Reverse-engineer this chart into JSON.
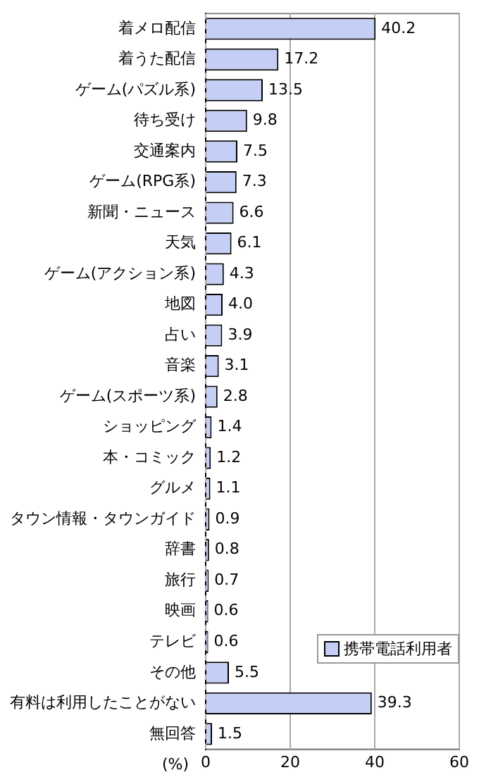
{
  "chart_data": {
    "type": "bar",
    "orientation": "horizontal",
    "xlabel": "(%)",
    "categories": [
      "着メロ配信",
      "着うた配信",
      "ゲーム(パズル系)",
      "待ち受け",
      "交通案内",
      "ゲーム(RPG系)",
      "新聞・ニュース",
      "天気",
      "ゲーム(アクション系)",
      "地図",
      "占い",
      "音楽",
      "ゲーム(スポーツ系)",
      "ショッピング",
      "本・コミック",
      "グルメ",
      "タウン情報・タウンガイド",
      "辞書",
      "旅行",
      "映画",
      "テレビ",
      "その他",
      "有料は利用したことがない",
      "無回答"
    ],
    "series": [
      {
        "name": "携帯電話利用者",
        "color": "#c5cff5",
        "values": [
          40.2,
          17.2,
          13.5,
          9.8,
          7.5,
          7.3,
          6.6,
          6.1,
          4.3,
          4.0,
          3.9,
          3.1,
          2.8,
          1.4,
          1.2,
          1.1,
          0.9,
          0.8,
          0.7,
          0.6,
          0.6,
          5.5,
          39.3,
          1.5
        ],
        "value_labels": [
          "40.2",
          "17.2",
          "13.5",
          "9.8",
          "7.5",
          "7.3",
          "6.6",
          "6.1",
          "4.3",
          "4.0",
          "3.9",
          "3.1",
          "2.8",
          "1.4",
          "1.2",
          "1.1",
          "0.9",
          "0.8",
          "0.7",
          "0.6",
          "0.6",
          "5.5",
          "39.3",
          "1.5"
        ]
      }
    ],
    "xlim": [
      0,
      60
    ],
    "xticks": [
      0,
      20,
      40,
      60
    ],
    "grid": "x",
    "legend": "bottom right"
  }
}
